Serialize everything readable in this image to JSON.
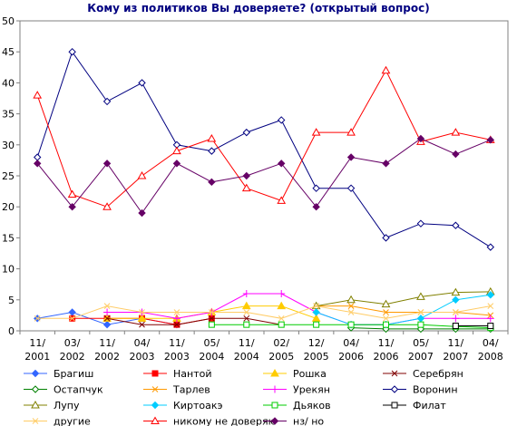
{
  "chart_data": {
    "type": "line",
    "title": "Кому из политиков Вы доверяете? (открытый вопрос)",
    "xlabel": "",
    "ylabel": "",
    "ylim": [
      0,
      50
    ],
    "yticks": [
      0,
      5,
      10,
      15,
      20,
      25,
      30,
      35,
      40,
      45,
      50
    ],
    "grid": "none",
    "legend_position": "bottom",
    "categories": [
      {
        "line1": "11/",
        "line2": "2001"
      },
      {
        "line1": "03/",
        "line2": "2002"
      },
      {
        "line1": "11/",
        "line2": "2002"
      },
      {
        "line1": "04/",
        "line2": "2003"
      },
      {
        "line1": "11/",
        "line2": "2003"
      },
      {
        "line1": "05/",
        "line2": "2004"
      },
      {
        "line1": "11/",
        "line2": "2004"
      },
      {
        "line1": "02/",
        "line2": "2005"
      },
      {
        "line1": "12/",
        "line2": "2005"
      },
      {
        "line1": "04/",
        "line2": "2006"
      },
      {
        "line1": "11/",
        "line2": "2006"
      },
      {
        "line1": "05/",
        "line2": "2007"
      },
      {
        "line1": "11/",
        "line2": "2007"
      },
      {
        "line1": "04/",
        "line2": "2008"
      }
    ],
    "series": [
      {
        "name": "Брагиш",
        "color": "#3366ff",
        "marker": "diamond",
        "values": [
          2,
          3,
          1,
          2,
          1,
          null,
          null,
          null,
          null,
          null,
          null,
          null,
          null,
          null
        ]
      },
      {
        "name": "Нантой",
        "color": "#ff0000",
        "marker": "square",
        "values": [
          null,
          2,
          2,
          2,
          1,
          2,
          null,
          null,
          null,
          null,
          null,
          null,
          null,
          null
        ]
      },
      {
        "name": "Рошка",
        "color": "#ffcc00",
        "marker": "triangle",
        "values": [
          null,
          null,
          2,
          2,
          2,
          3,
          4,
          4,
          2,
          null,
          null,
          null,
          null,
          null
        ]
      },
      {
        "name": "Серебрян",
        "color": "#800000",
        "marker": "x",
        "values": [
          null,
          null,
          2,
          1,
          1,
          2,
          2,
          1,
          null,
          null,
          null,
          null,
          null,
          null
        ]
      },
      {
        "name": "Остапчук",
        "color": "#008000",
        "marker": "diamond-open",
        "values": [
          null,
          null,
          null,
          null,
          null,
          null,
          null,
          null,
          null,
          0.5,
          0.3,
          0.3,
          0.3,
          0.3
        ]
      },
      {
        "name": "Тарлев",
        "color": "#ff9900",
        "marker": "x",
        "values": [
          null,
          null,
          null,
          null,
          null,
          null,
          null,
          null,
          4,
          4,
          3,
          3,
          3,
          2.5
        ]
      },
      {
        "name": "Урекян",
        "color": "#ff00ff",
        "marker": "plus",
        "values": [
          null,
          null,
          3,
          3,
          2,
          3,
          6,
          6,
          3,
          1,
          1,
          2,
          2,
          2
        ]
      },
      {
        "name": "Воронин",
        "color": "#000080",
        "marker": "diamond-open",
        "values": [
          28,
          45,
          37,
          40,
          30,
          29,
          32,
          34,
          23,
          23,
          15,
          17.3,
          17,
          13.5
        ]
      },
      {
        "name": "Лупу",
        "color": "#808000",
        "marker": "triangle-open",
        "values": [
          null,
          null,
          null,
          null,
          null,
          null,
          null,
          null,
          4,
          5,
          4.3,
          5.5,
          6.2,
          6.3
        ]
      },
      {
        "name": "Киртоакэ",
        "color": "#00ccff",
        "marker": "diamond",
        "values": [
          null,
          null,
          null,
          null,
          null,
          null,
          null,
          null,
          3,
          1,
          1,
          2,
          5,
          5.8
        ]
      },
      {
        "name": "Дьяков",
        "color": "#00cc00",
        "marker": "square-open",
        "values": [
          null,
          null,
          null,
          null,
          null,
          1,
          1,
          1,
          1,
          1,
          1,
          1,
          0.7,
          0.5
        ]
      },
      {
        "name": "Филат",
        "color": "#000000",
        "marker": "square-open",
        "values": [
          null,
          null,
          null,
          null,
          null,
          null,
          null,
          null,
          null,
          null,
          null,
          null,
          0.8,
          0.8
        ]
      },
      {
        "name": "другие",
        "color": "#ffcc66",
        "marker": "x",
        "values": [
          2,
          2,
          4,
          3,
          3,
          3,
          3,
          2,
          4,
          3,
          2,
          3,
          3,
          4
        ]
      },
      {
        "name": "никому не доверяю",
        "color": "#ff0000",
        "marker": "triangle-open",
        "values": [
          38,
          22,
          20,
          25,
          29,
          31,
          23,
          21,
          32,
          32,
          42,
          30.5,
          32,
          30.8
        ]
      },
      {
        "name": "нз/ но",
        "color": "#660066",
        "marker": "diamond",
        "values": [
          27,
          20,
          27,
          19,
          27,
          24,
          25,
          27,
          20,
          28,
          27,
          31,
          28.5,
          30.8
        ]
      }
    ]
  }
}
